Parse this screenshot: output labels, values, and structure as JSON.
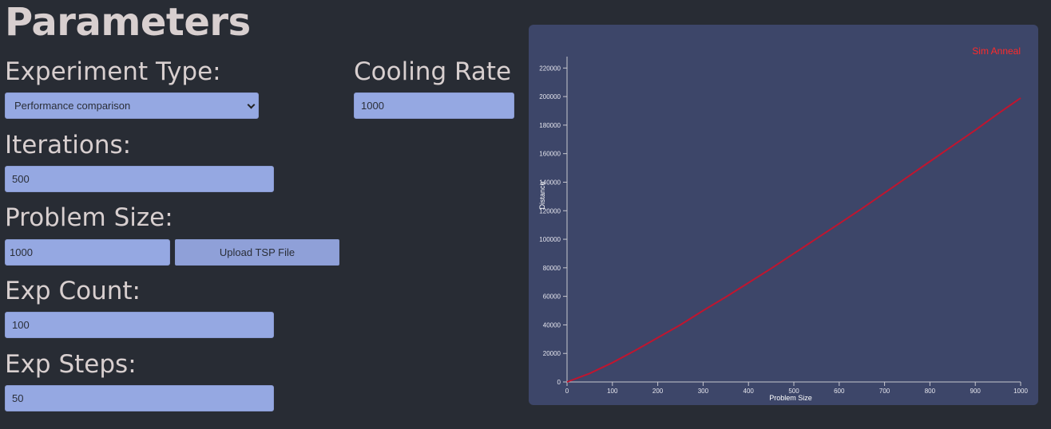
{
  "title": "Parameters",
  "experiment_type": {
    "label": "Experiment Type:",
    "selected": "Performance comparison"
  },
  "cooling_rate": {
    "label": "Cooling Rate",
    "value": "1000"
  },
  "iterations": {
    "label": "Iterations:",
    "value": "500"
  },
  "problem_size": {
    "label": "Problem Size:",
    "value": "1000",
    "upload_label": "Upload TSP File"
  },
  "exp_count": {
    "label": "Exp Count:",
    "value": "100"
  },
  "exp_steps": {
    "label": "Exp Steps:",
    "value": "50"
  },
  "colors": {
    "line": "#c0152f",
    "legend": "#ff2a2a",
    "panel": "#3d4669",
    "field": "#95a8e2"
  },
  "chart_data": {
    "type": "line",
    "xlabel": "Problem Size",
    "ylabel": "Distance",
    "xlim": [
      0,
      1000
    ],
    "ylim": [
      0,
      228000
    ],
    "x_ticks": [
      0,
      100,
      200,
      300,
      400,
      500,
      600,
      700,
      800,
      900,
      1000
    ],
    "y_ticks": [
      0,
      20000,
      40000,
      60000,
      80000,
      100000,
      120000,
      140000,
      160000,
      180000,
      200000,
      220000
    ],
    "legend_position": "top-right",
    "series": [
      {
        "name": "Sim Anneal",
        "color": "#c0152f",
        "x": [
          0,
          50,
          100,
          150,
          200,
          250,
          300,
          350,
          400,
          450,
          500,
          550,
          600,
          650,
          700,
          750,
          800,
          850,
          900,
          950,
          1000
        ],
        "y": [
          0,
          6000,
          13500,
          22000,
          31000,
          40000,
          50000,
          59500,
          69500,
          79500,
          90000,
          100500,
          111000,
          121500,
          132500,
          143500,
          154500,
          165500,
          176500,
          188000,
          199000
        ]
      }
    ]
  }
}
